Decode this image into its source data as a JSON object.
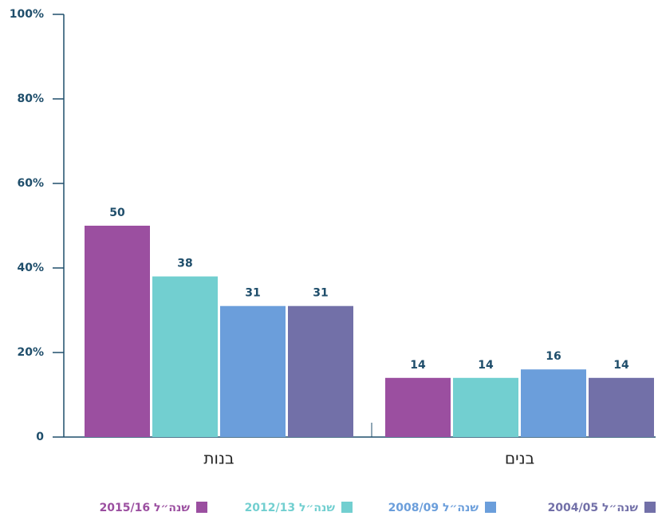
{
  "chart_data": {
    "type": "bar",
    "categories": [
      "בנות",
      "בנים"
    ],
    "series": [
      {
        "name": "שנה״ל 2015/16",
        "color": "#9b4fa0",
        "values": [
          50,
          14
        ]
      },
      {
        "name": "שנה״ל 2012/13",
        "color": "#72cfd0",
        "values": [
          38,
          14
        ]
      },
      {
        "name": "שנה״ל 2008/09",
        "color": "#6b9edb",
        "values": [
          31,
          16
        ]
      },
      {
        "name": "שנה״ל 2004/05",
        "color": "#7270a8",
        "values": [
          31,
          14
        ]
      }
    ],
    "ylim": [
      0,
      100
    ],
    "yticks": [
      0,
      {
        "value": 20,
        "label": "20%"
      },
      {
        "value": 40,
        "label": "40%"
      },
      {
        "value": 60,
        "label": "60%"
      },
      {
        "value": 80,
        "label": "80%"
      },
      {
        "value": 100,
        "label": "100%"
      }
    ],
    "grid": false
  }
}
